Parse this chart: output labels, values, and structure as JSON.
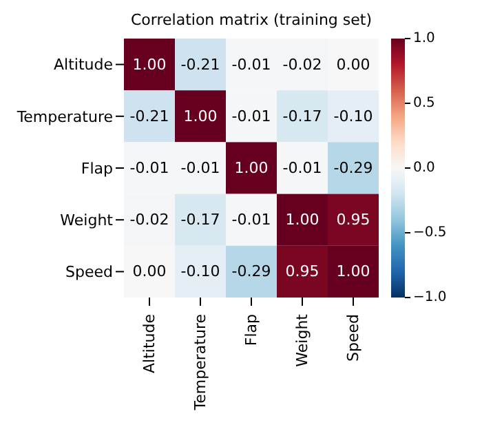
{
  "chart_data": {
    "type": "heatmap",
    "title": "Correlation matrix (training set)",
    "categories": [
      "Altitude",
      "Temperature",
      "Flap",
      "Weight",
      "Speed"
    ],
    "y_categories": [
      "Altitude",
      "Temperature",
      "Flap",
      "Weight",
      "Speed"
    ],
    "cells": [
      [
        1.0,
        -0.21,
        -0.01,
        -0.02,
        0.0
      ],
      [
        -0.21,
        1.0,
        -0.01,
        -0.17,
        -0.1
      ],
      [
        -0.01,
        -0.01,
        1.0,
        -0.01,
        -0.29
      ],
      [
        -0.02,
        -0.17,
        -0.01,
        1.0,
        0.95
      ],
      [
        0.0,
        -0.1,
        -0.29,
        0.95,
        1.0
      ]
    ],
    "cell_labels": [
      [
        "1.00",
        "-0.21",
        "-0.01",
        "-0.02",
        "0.00"
      ],
      [
        "-0.21",
        "1.00",
        "-0.01",
        "-0.17",
        "-0.10"
      ],
      [
        "-0.01",
        "-0.01",
        "1.00",
        "-0.01",
        "-0.29"
      ],
      [
        "-0.02",
        "-0.17",
        "-0.01",
        "1.00",
        "0.95"
      ],
      [
        "0.00",
        "-0.10",
        "-0.29",
        "0.95",
        "1.00"
      ]
    ],
    "clim": [
      -1,
      1
    ],
    "cticks": [
      {
        "value": -1,
        "label": "−1.0"
      },
      {
        "value": -0.5,
        "label": "−0.5"
      },
      {
        "value": 0,
        "label": "0.0"
      },
      {
        "value": 0.5,
        "label": "0.5"
      },
      {
        "value": 1,
        "label": "1.0"
      }
    ]
  }
}
